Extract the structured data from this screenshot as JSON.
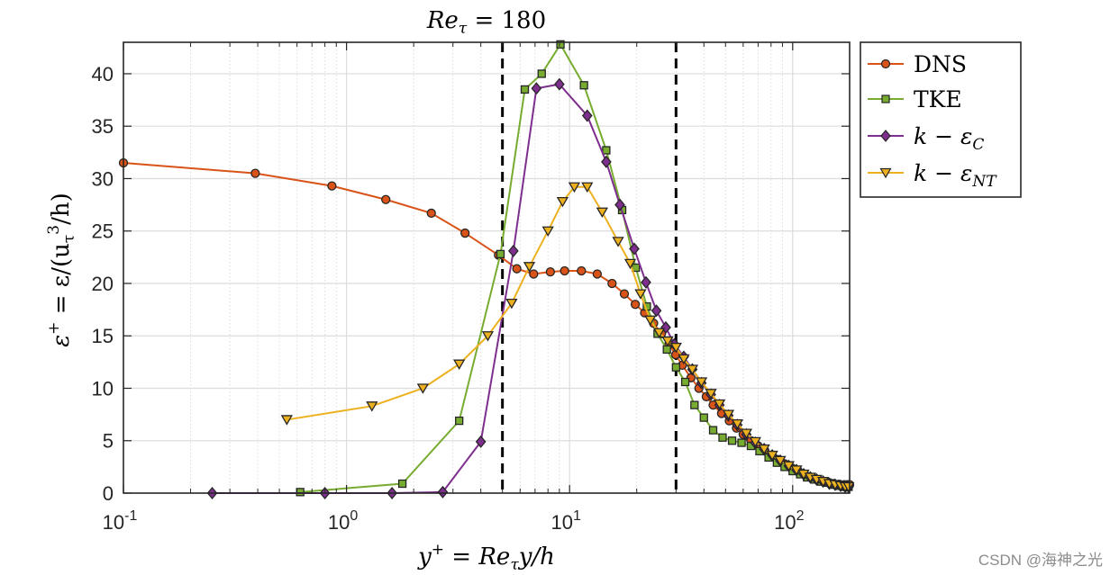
{
  "chart_data": {
    "type": "line",
    "title": "Re_τ = 180",
    "title_parts": {
      "main": "Re",
      "sub": "τ",
      "rest": " = 180"
    },
    "xlabel": "y+ = Re_τ y/h",
    "xlabel_parts": {
      "a": "y",
      "sup": "+",
      "b": " = Re",
      "sub": "τ",
      "c": "y/h"
    },
    "ylabel": "ε+ = ε/(u_τ^3/h)",
    "ylabel_parts": {
      "a": "ε",
      "sup": "+",
      "b": " = ε/(u",
      "sub": "τ",
      "sup2": "3",
      "c": "/h)"
    },
    "xscale": "log",
    "xlim": [
      0.1,
      180
    ],
    "ylim": [
      0,
      43
    ],
    "grid": true,
    "legend_position": "outside-top-right",
    "x_ticks": [
      {
        "base": "10",
        "exp": "-1",
        "value": 0.1
      },
      {
        "base": "10",
        "exp": "0",
        "value": 1
      },
      {
        "base": "10",
        "exp": "1",
        "value": 10
      },
      {
        "base": "10",
        "exp": "2",
        "value": 100
      }
    ],
    "y_ticks": [
      "0",
      "5",
      "10",
      "15",
      "20",
      "25",
      "30",
      "35",
      "40"
    ],
    "vertical_dashed_lines_x": [
      5,
      30
    ],
    "colors": {
      "DNS": "#d95319",
      "TKE": "#77ac30",
      "kepsC": "#7e2f8e",
      "kepsNT": "#edb120",
      "axis": "#262626",
      "grid": "#dcdcdc"
    },
    "series": [
      {
        "name": "DNS",
        "legend": {
          "main": "DNS"
        },
        "marker": "circle",
        "color": "#d95319",
        "x": [
          0.1,
          0.39,
          0.86,
          1.5,
          2.4,
          3.4,
          4.8,
          5.8,
          6.9,
          8.2,
          9.5,
          11.3,
          13.3,
          15.5,
          17.6,
          19.7,
          21.7,
          23.8,
          25.8,
          27.9,
          29.9,
          32,
          35,
          38,
          41,
          44,
          48,
          52,
          56,
          60,
          65,
          70,
          75,
          80,
          86,
          92,
          99,
          106,
          113,
          121,
          129,
          137,
          145,
          153,
          161,
          170,
          176,
          180
        ],
        "y": [
          31.5,
          30.5,
          29.3,
          28.0,
          26.7,
          24.8,
          22.7,
          21.4,
          20.9,
          21.1,
          21.2,
          21.2,
          20.9,
          20.0,
          19.0,
          18.0,
          17.2,
          16.2,
          15.2,
          14.2,
          13.2,
          12.2,
          11.0,
          10.0,
          9.2,
          8.4,
          7.6,
          6.9,
          6.2,
          5.6,
          5.0,
          4.5,
          4.0,
          3.6,
          3.2,
          2.8,
          2.4,
          2.1,
          1.8,
          1.5,
          1.3,
          1.1,
          1.0,
          0.9,
          0.85,
          0.8,
          0.8,
          0.8
        ]
      },
      {
        "name": "TKE",
        "legend": {
          "main": "TKE"
        },
        "marker": "square",
        "color": "#77ac30",
        "x": [
          0.62,
          1.78,
          3.2,
          4.9,
          6.3,
          7.5,
          9.1,
          11.6,
          14.6,
          17.2,
          19.8,
          22.2,
          24.8,
          27.3,
          30,
          33,
          36.3,
          40,
          44,
          48.5,
          53.5,
          59,
          65,
          71,
          78,
          85,
          92,
          100,
          108,
          116,
          125,
          134,
          143,
          152,
          161,
          170,
          178
        ],
        "y": [
          0.1,
          0.9,
          6.9,
          22.8,
          38.5,
          40.0,
          42.8,
          38.9,
          32.7,
          27.0,
          21.5,
          17.8,
          15.2,
          13.7,
          12.0,
          10.6,
          8.4,
          7.2,
          6.0,
          5.3,
          5.0,
          4.8,
          4.5,
          4.0,
          3.4,
          2.9,
          2.5,
          2.1,
          1.8,
          1.5,
          1.3,
          1.1,
          1.0,
          0.8,
          0.7,
          0.6,
          0.6
        ]
      },
      {
        "name": "k-εC",
        "legend": {
          "main": "k − ε",
          "sub": "C"
        },
        "marker": "diamond",
        "color": "#7e2f8e",
        "x": [
          0.25,
          0.8,
          1.6,
          2.7,
          4.0,
          5.6,
          7.1,
          9.0,
          12.0,
          14.6,
          16.8,
          19.5,
          22,
          24.5,
          27,
          29.5,
          32.5,
          35.5,
          39,
          43,
          47,
          51.5,
          56.5,
          62,
          68,
          74.5,
          81,
          88,
          96,
          104,
          112,
          120,
          128,
          137,
          146,
          155,
          164,
          172,
          178
        ],
        "y": [
          0.0,
          0.0,
          0.0,
          0.1,
          4.9,
          23.1,
          38.6,
          39.0,
          36.0,
          31.6,
          27.5,
          23.3,
          20.1,
          17.4,
          15.8,
          14.2,
          13.0,
          11.8,
          10.5,
          9.4,
          8.4,
          7.4,
          6.5,
          5.6,
          4.8,
          4.2,
          3.6,
          3.1,
          2.6,
          2.2,
          1.8,
          1.5,
          1.3,
          1.1,
          0.9,
          0.8,
          0.7,
          0.6,
          0.6
        ]
      },
      {
        "name": "k-εNT",
        "legend": {
          "main": "k − ε",
          "sub": "NT"
        },
        "marker": "triangle-down",
        "color": "#edb120",
        "x": [
          0.54,
          1.3,
          2.2,
          3.2,
          4.3,
          5.5,
          6.6,
          8.0,
          9.3,
          10.5,
          12.0,
          14.0,
          16.5,
          18.7,
          20.8,
          23,
          25.2,
          27.5,
          30,
          32.5,
          35.5,
          39,
          43,
          47,
          51.5,
          56.5,
          62,
          68,
          74.5,
          81,
          88,
          96,
          104,
          112,
          120,
          128,
          137,
          146,
          155,
          164,
          172,
          178
        ],
        "y": [
          7.0,
          8.3,
          10.0,
          12.3,
          15.0,
          18.1,
          21.6,
          25.0,
          27.8,
          29.2,
          29.2,
          26.8,
          24.0,
          21.9,
          19.0,
          16.5,
          15.3,
          14.5,
          13.9,
          12.8,
          11.8,
          10.6,
          9.5,
          8.5,
          7.5,
          6.6,
          5.7,
          4.9,
          4.2,
          3.6,
          3.1,
          2.6,
          2.2,
          1.8,
          1.5,
          1.3,
          1.1,
          0.9,
          0.8,
          0.7,
          0.6,
          0.6
        ]
      }
    ]
  },
  "watermark": "CSDN @海神之光"
}
